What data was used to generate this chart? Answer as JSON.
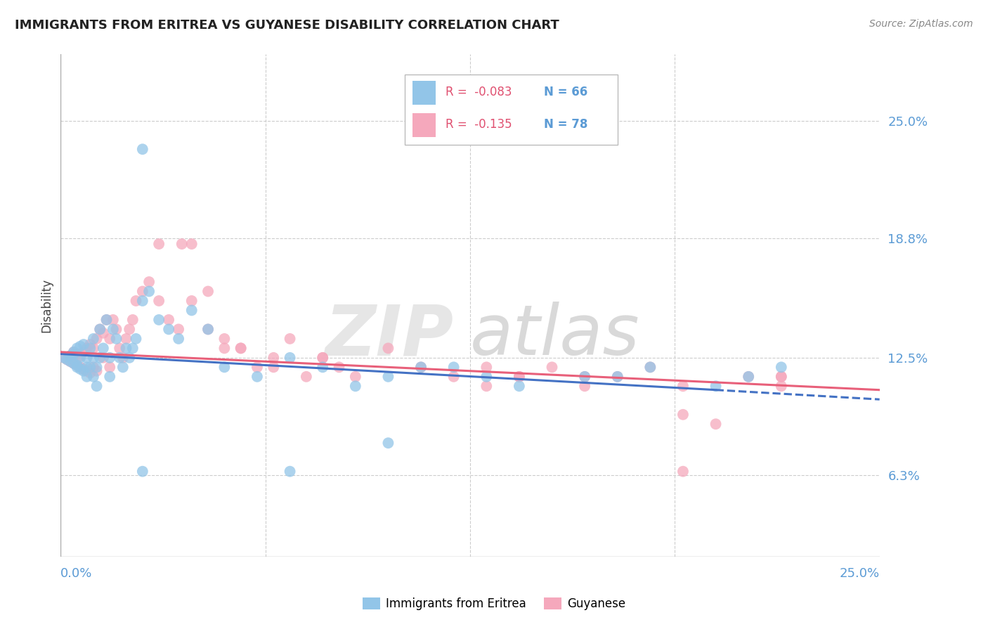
{
  "title": "IMMIGRANTS FROM ERITREA VS GUYANESE DISABILITY CORRELATION CHART",
  "source": "Source: ZipAtlas.com",
  "ylabel": "Disability",
  "xmin": 0.0,
  "xmax": 0.25,
  "ymin": 0.02,
  "ymax": 0.285,
  "ytick_vals": [
    0.063,
    0.125,
    0.188,
    0.25
  ],
  "ytick_labels": [
    "6.3%",
    "12.5%",
    "18.8%",
    "25.0%"
  ],
  "xtick_labels": [
    "0.0%",
    "25.0%"
  ],
  "legend_r1": "-0.083",
  "legend_n1": "66",
  "legend_r2": "-0.135",
  "legend_n2": "78",
  "color_eritrea": "#92C5E8",
  "color_guyanese": "#F5A8BC",
  "color_eritrea_line": "#4472C4",
  "color_guyanese_line": "#E8607A",
  "color_grid": "#CCCCCC",
  "color_right_labels": "#5B9BD5",
  "watermark_zip": "ZIP",
  "watermark_atlas": "atlas",
  "eritrea_x": [
    0.001,
    0.002,
    0.003,
    0.003,
    0.004,
    0.004,
    0.004,
    0.005,
    0.005,
    0.005,
    0.006,
    0.006,
    0.006,
    0.007,
    0.007,
    0.008,
    0.008,
    0.008,
    0.009,
    0.009,
    0.01,
    0.01,
    0.01,
    0.011,
    0.011,
    0.012,
    0.012,
    0.013,
    0.014,
    0.015,
    0.015,
    0.016,
    0.017,
    0.018,
    0.019,
    0.02,
    0.021,
    0.022,
    0.023,
    0.025,
    0.027,
    0.03,
    0.033,
    0.036,
    0.04,
    0.045,
    0.05,
    0.06,
    0.07,
    0.08,
    0.09,
    0.1,
    0.11,
    0.025,
    0.1,
    0.13,
    0.16,
    0.18,
    0.2,
    0.21,
    0.025,
    0.07,
    0.12,
    0.14,
    0.17,
    0.22
  ],
  "eritrea_y": [
    0.125,
    0.124,
    0.126,
    0.123,
    0.127,
    0.122,
    0.128,
    0.121,
    0.13,
    0.12,
    0.125,
    0.119,
    0.131,
    0.118,
    0.132,
    0.125,
    0.12,
    0.115,
    0.13,
    0.12,
    0.125,
    0.115,
    0.135,
    0.12,
    0.11,
    0.125,
    0.14,
    0.13,
    0.145,
    0.125,
    0.115,
    0.14,
    0.135,
    0.125,
    0.12,
    0.13,
    0.125,
    0.13,
    0.135,
    0.155,
    0.16,
    0.145,
    0.14,
    0.135,
    0.15,
    0.14,
    0.12,
    0.115,
    0.125,
    0.12,
    0.11,
    0.115,
    0.12,
    0.235,
    0.08,
    0.115,
    0.115,
    0.12,
    0.11,
    0.115,
    0.065,
    0.065,
    0.12,
    0.11,
    0.115,
    0.12
  ],
  "guyanese_x": [
    0.001,
    0.002,
    0.003,
    0.003,
    0.004,
    0.004,
    0.005,
    0.005,
    0.006,
    0.006,
    0.007,
    0.007,
    0.008,
    0.008,
    0.009,
    0.009,
    0.01,
    0.01,
    0.011,
    0.011,
    0.012,
    0.013,
    0.013,
    0.014,
    0.015,
    0.015,
    0.016,
    0.017,
    0.018,
    0.019,
    0.02,
    0.021,
    0.022,
    0.023,
    0.025,
    0.027,
    0.03,
    0.033,
    0.036,
    0.04,
    0.045,
    0.05,
    0.055,
    0.06,
    0.065,
    0.07,
    0.08,
    0.09,
    0.1,
    0.11,
    0.12,
    0.13,
    0.14,
    0.15,
    0.16,
    0.17,
    0.18,
    0.19,
    0.2,
    0.21,
    0.22,
    0.08,
    0.13,
    0.16,
    0.19,
    0.22,
    0.03,
    0.04,
    0.05,
    0.037,
    0.14,
    0.19,
    0.22,
    0.045,
    0.055,
    0.065,
    0.075,
    0.085
  ],
  "guyanese_y": [
    0.125,
    0.124,
    0.126,
    0.123,
    0.128,
    0.122,
    0.127,
    0.121,
    0.126,
    0.12,
    0.128,
    0.119,
    0.13,
    0.118,
    0.132,
    0.117,
    0.13,
    0.12,
    0.135,
    0.118,
    0.14,
    0.138,
    0.125,
    0.145,
    0.135,
    0.12,
    0.145,
    0.14,
    0.13,
    0.125,
    0.135,
    0.14,
    0.145,
    0.155,
    0.16,
    0.165,
    0.155,
    0.145,
    0.14,
    0.155,
    0.16,
    0.135,
    0.13,
    0.12,
    0.125,
    0.135,
    0.125,
    0.115,
    0.13,
    0.12,
    0.115,
    0.11,
    0.115,
    0.12,
    0.11,
    0.115,
    0.12,
    0.11,
    0.09,
    0.115,
    0.11,
    0.125,
    0.12,
    0.115,
    0.095,
    0.115,
    0.185,
    0.185,
    0.13,
    0.185,
    0.115,
    0.065,
    0.115,
    0.14,
    0.13,
    0.12,
    0.115,
    0.12
  ]
}
